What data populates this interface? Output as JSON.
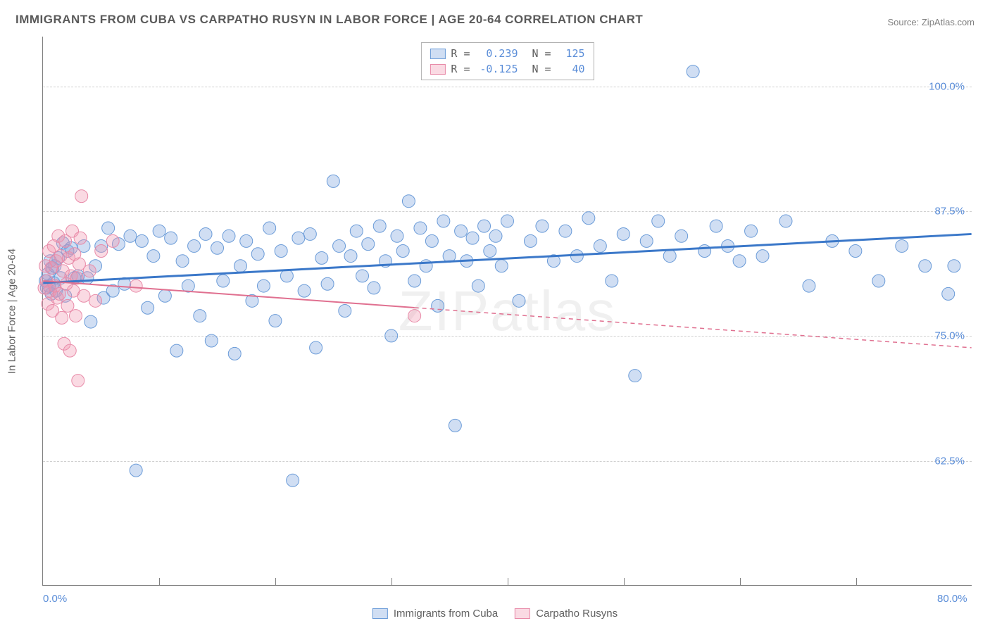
{
  "title": "IMMIGRANTS FROM CUBA VS CARPATHO RUSYN IN LABOR FORCE | AGE 20-64 CORRELATION CHART",
  "source": "Source: ZipAtlas.com",
  "watermark": "ZIPatlas",
  "chart": {
    "type": "scatter",
    "y_axis_title": "In Labor Force | Age 20-64",
    "xlim": [
      0,
      80
    ],
    "ylim": [
      50,
      105
    ],
    "x_ticks_minor": [
      10,
      20,
      30,
      40,
      50,
      60,
      70
    ],
    "x_tick_labels": [
      {
        "pos": 0,
        "label": "0.0%"
      },
      {
        "pos": 80,
        "label": "80.0%"
      }
    ],
    "y_gridlines": [
      62.5,
      75.0,
      87.5,
      100.0
    ],
    "y_tick_labels": [
      {
        "pos": 62.5,
        "label": "62.5%"
      },
      {
        "pos": 75.0,
        "label": "75.0%"
      },
      {
        "pos": 87.5,
        "label": "87.5%"
      },
      {
        "pos": 100.0,
        "label": "100.0%"
      }
    ],
    "grid_color": "#d0d0d0",
    "axis_color": "#808080",
    "background_color": "#ffffff",
    "marker_radius": 9,
    "series": [
      {
        "name": "Immigrants from Cuba",
        "color_fill": "rgba(120,160,220,0.35)",
        "color_stroke": "#6a9bd8",
        "r_value": "0.239",
        "n_value": "125",
        "trend": {
          "x1": 0,
          "y1": 80.3,
          "x2": 80,
          "y2": 85.2,
          "color": "#3b78c9",
          "width": 3,
          "solid_until_x": 80
        },
        "points": [
          [
            0.2,
            80.5
          ],
          [
            0.3,
            79.8
          ],
          [
            0.4,
            81.2
          ],
          [
            0.5,
            80.0
          ],
          [
            0.6,
            82.5
          ],
          [
            0.7,
            79.2
          ],
          [
            0.8,
            81.8
          ],
          [
            0.9,
            80.3
          ],
          [
            1.0,
            82.0
          ],
          [
            1.1,
            79.5
          ],
          [
            1.3,
            82.8
          ],
          [
            1.5,
            80.8
          ],
          [
            1.7,
            84.3
          ],
          [
            1.9,
            79.0
          ],
          [
            2.1,
            83.5
          ],
          [
            2.4,
            83.8
          ],
          [
            2.7,
            80.8
          ],
          [
            3.0,
            81.0
          ],
          [
            3.5,
            84.0
          ],
          [
            3.8,
            80.8
          ],
          [
            4.1,
            76.4
          ],
          [
            4.5,
            82.0
          ],
          [
            5.0,
            84.0
          ],
          [
            5.2,
            78.8
          ],
          [
            5.6,
            85.8
          ],
          [
            6.0,
            79.5
          ],
          [
            6.5,
            84.2
          ],
          [
            7.0,
            80.2
          ],
          [
            7.5,
            85.0
          ],
          [
            8.0,
            61.5
          ],
          [
            8.5,
            84.5
          ],
          [
            9.0,
            77.8
          ],
          [
            9.5,
            83.0
          ],
          [
            10.0,
            85.5
          ],
          [
            10.5,
            79.0
          ],
          [
            11.0,
            84.8
          ],
          [
            11.5,
            73.5
          ],
          [
            12.0,
            82.5
          ],
          [
            12.5,
            80.0
          ],
          [
            13.0,
            84.0
          ],
          [
            13.5,
            77.0
          ],
          [
            14.0,
            85.2
          ],
          [
            14.5,
            74.5
          ],
          [
            15.0,
            83.8
          ],
          [
            15.5,
            80.5
          ],
          [
            16.0,
            85.0
          ],
          [
            16.5,
            73.2
          ],
          [
            17.0,
            82.0
          ],
          [
            17.5,
            84.5
          ],
          [
            18.0,
            78.5
          ],
          [
            18.5,
            83.2
          ],
          [
            19.0,
            80.0
          ],
          [
            19.5,
            85.8
          ],
          [
            20.0,
            76.5
          ],
          [
            20.5,
            83.5
          ],
          [
            21.0,
            81.0
          ],
          [
            21.5,
            60.5
          ],
          [
            22.0,
            84.8
          ],
          [
            22.5,
            79.5
          ],
          [
            23.0,
            85.2
          ],
          [
            23.5,
            73.8
          ],
          [
            24.0,
            82.8
          ],
          [
            24.5,
            80.2
          ],
          [
            25.0,
            90.5
          ],
          [
            25.5,
            84.0
          ],
          [
            26.0,
            77.5
          ],
          [
            26.5,
            83.0
          ],
          [
            27.0,
            85.5
          ],
          [
            27.5,
            81.0
          ],
          [
            28.0,
            84.2
          ],
          [
            28.5,
            79.8
          ],
          [
            29.0,
            86.0
          ],
          [
            29.5,
            82.5
          ],
          [
            30.0,
            75.0
          ],
          [
            30.5,
            85.0
          ],
          [
            31.0,
            83.5
          ],
          [
            31.5,
            88.5
          ],
          [
            32.0,
            80.5
          ],
          [
            32.5,
            85.8
          ],
          [
            33.0,
            82.0
          ],
          [
            33.5,
            84.5
          ],
          [
            34.0,
            78.0
          ],
          [
            34.5,
            86.5
          ],
          [
            35.0,
            83.0
          ],
          [
            35.5,
            66.0
          ],
          [
            36.0,
            85.5
          ],
          [
            36.5,
            82.5
          ],
          [
            37.0,
            84.8
          ],
          [
            37.5,
            80.0
          ],
          [
            38.0,
            86.0
          ],
          [
            38.5,
            83.5
          ],
          [
            39.0,
            85.0
          ],
          [
            39.5,
            82.0
          ],
          [
            40.0,
            86.5
          ],
          [
            41.0,
            78.5
          ],
          [
            42.0,
            84.5
          ],
          [
            43.0,
            86.0
          ],
          [
            44.0,
            82.5
          ],
          [
            45.0,
            85.5
          ],
          [
            46.0,
            83.0
          ],
          [
            47.0,
            86.8
          ],
          [
            48.0,
            84.0
          ],
          [
            49.0,
            80.5
          ],
          [
            50.0,
            85.2
          ],
          [
            51.0,
            71.0
          ],
          [
            52.0,
            84.5
          ],
          [
            53.0,
            86.5
          ],
          [
            54.0,
            83.0
          ],
          [
            55.0,
            85.0
          ],
          [
            56.0,
            101.5
          ],
          [
            57.0,
            83.5
          ],
          [
            58.0,
            86.0
          ],
          [
            59.0,
            84.0
          ],
          [
            60.0,
            82.5
          ],
          [
            61.0,
            85.5
          ],
          [
            62.0,
            83.0
          ],
          [
            64.0,
            86.5
          ],
          [
            66.0,
            80.0
          ],
          [
            68.0,
            84.5
          ],
          [
            70.0,
            83.5
          ],
          [
            72.0,
            80.5
          ],
          [
            74.0,
            84.0
          ],
          [
            76.0,
            82.0
          ],
          [
            78.0,
            79.2
          ],
          [
            78.5,
            82.0
          ]
        ]
      },
      {
        "name": "Carpatho Rusyns",
        "color_fill": "rgba(240,150,175,0.35)",
        "color_stroke": "#e88aa8",
        "r_value": "-0.125",
        "n_value": "40",
        "trend": {
          "x1": 0,
          "y1": 80.5,
          "x2": 80,
          "y2": 73.8,
          "color": "#e07090",
          "width": 2,
          "solid_until_x": 32
        },
        "points": [
          [
            0.1,
            79.8
          ],
          [
            0.2,
            82.0
          ],
          [
            0.3,
            80.5
          ],
          [
            0.4,
            78.2
          ],
          [
            0.5,
            83.5
          ],
          [
            0.6,
            79.5
          ],
          [
            0.7,
            81.8
          ],
          [
            0.8,
            77.5
          ],
          [
            0.9,
            84.0
          ],
          [
            1.0,
            80.0
          ],
          [
            1.1,
            82.5
          ],
          [
            1.2,
            78.8
          ],
          [
            1.3,
            85.0
          ],
          [
            1.4,
            79.2
          ],
          [
            1.5,
            83.0
          ],
          [
            1.6,
            76.8
          ],
          [
            1.7,
            81.5
          ],
          [
            1.8,
            74.2
          ],
          [
            1.9,
            84.5
          ],
          [
            2.0,
            80.2
          ],
          [
            2.1,
            78.0
          ],
          [
            2.2,
            82.8
          ],
          [
            2.3,
            73.5
          ],
          [
            2.4,
            81.0
          ],
          [
            2.5,
            85.5
          ],
          [
            2.6,
            79.5
          ],
          [
            2.7,
            83.2
          ],
          [
            2.8,
            77.0
          ],
          [
            2.9,
            80.8
          ],
          [
            3.0,
            70.5
          ],
          [
            3.1,
            82.2
          ],
          [
            3.2,
            84.8
          ],
          [
            3.3,
            89.0
          ],
          [
            3.5,
            79.0
          ],
          [
            4.0,
            81.5
          ],
          [
            4.5,
            78.5
          ],
          [
            5.0,
            83.5
          ],
          [
            6.0,
            84.5
          ],
          [
            8.0,
            80.0
          ],
          [
            32.0,
            77.0
          ]
        ]
      }
    ],
    "top_legend": {
      "r_label": "R =",
      "n_label": "N ="
    },
    "bottom_legend_labels": [
      "Immigrants from Cuba",
      "Carpatho Rusyns"
    ]
  }
}
